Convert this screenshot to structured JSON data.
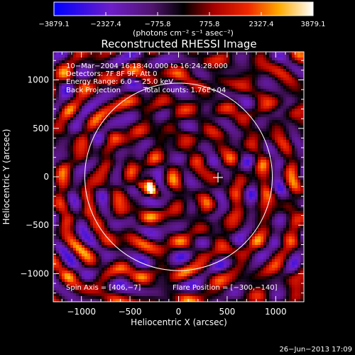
{
  "chart_data": {
    "type": "heatmap",
    "title": "Reconstructed RHESSI Image",
    "xlabel": "Heliocentric X (arcsec)",
    "ylabel": "Heliocentric Y (arcsec)",
    "xlim": [
      -1290,
      1290
    ],
    "ylim": [
      -1290,
      1290
    ],
    "x_ticks": [
      -1000,
      -500,
      0,
      500,
      1000
    ],
    "y_ticks": [
      -1000,
      -500,
      0,
      500,
      1000
    ],
    "x_tick_labels": [
      "−1000",
      "−500",
      "0",
      "500",
      "1000"
    ],
    "y_tick_labels": [
      "−1000",
      "−500",
      "0",
      "500",
      "1000"
    ],
    "colorbar": {
      "min": -3879.1,
      "max": 3879.1,
      "ticks": [
        -3879.1,
        -2327.4,
        -775.8,
        775.8,
        2327.4,
        3879.1
      ],
      "tick_labels": [
        "−3879.1",
        "−2327.4",
        "−775.8",
        "775.8",
        "2327.4",
        "3879.1"
      ],
      "units": "(photons cm⁻² s⁻¹ asec⁻²)"
    },
    "annotations": {
      "time_range": "10−Mar−2004 16:18:40.000 to 16:24:28.000",
      "detectors": "Detectors: 7F 8F 9F, Att 0",
      "energy_range": "Energy Range: 6.0 − 25.0 keV",
      "method": "Back Projection",
      "total_counts": "Total counts: 1.76E+04",
      "spin_axis": "Spin Axis = [406,−7]",
      "flare_position": "Flare Position = [−300,−140]"
    },
    "solar_limb_radius": 965,
    "spin_axis_marker": [
      406,
      -7
    ],
    "flare_center": [
      -300,
      -140
    ],
    "grid": false
  },
  "footer": {
    "timestamp": "26−Jun−2013 17:09"
  }
}
